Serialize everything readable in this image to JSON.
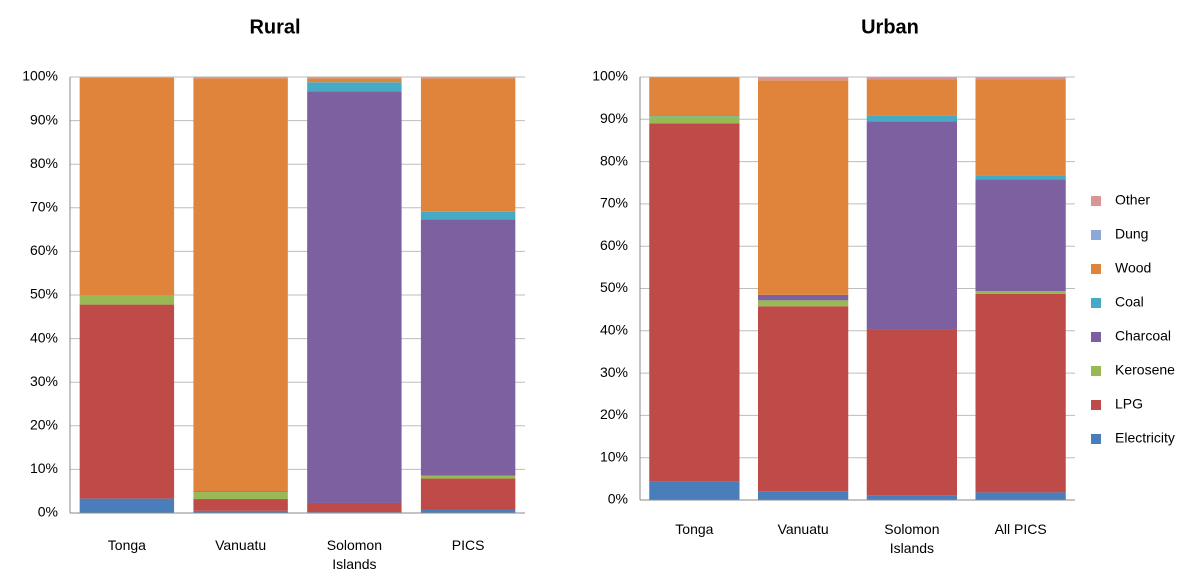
{
  "chart_data": [
    {
      "type": "stacked_bar",
      "title": "Rural",
      "categories": [
        "Tonga",
        "Vanuatu",
        "Solomon Islands",
        "PICS"
      ],
      "ylim": [
        0,
        100
      ],
      "yticks": [
        {
          "value": 0,
          "label": "0%"
        },
        {
          "value": 10,
          "label": "10%"
        },
        {
          "value": 20,
          "label": "20%"
        },
        {
          "value": 30,
          "label": "30%"
        },
        {
          "value": 40,
          "label": "40%"
        },
        {
          "value": 50,
          "label": "50%"
        },
        {
          "value": 60,
          "label": "60%"
        },
        {
          "value": 70,
          "label": "70%"
        },
        {
          "value": 80,
          "label": "80%"
        },
        {
          "value": 90,
          "label": "90%"
        },
        {
          "value": 100,
          "label": "100%"
        }
      ],
      "grid": true,
      "series": [
        {
          "name": "Electricity",
          "color": "#4a7ebb",
          "values": [
            3.3,
            0.5,
            0.2,
            0.8
          ]
        },
        {
          "name": "LPG",
          "color": "#be4b48",
          "values": [
            44.5,
            2.7,
            2.1,
            7.1
          ]
        },
        {
          "name": "Kerosene",
          "color": "#98b954",
          "values": [
            2,
            1.6,
            0,
            0.7
          ]
        },
        {
          "name": "Charcoal",
          "color": "#7d60a0",
          "values": [
            0,
            0.2,
            94.4,
            58.7
          ]
        },
        {
          "name": "Coal",
          "color": "#46aac5",
          "values": [
            0,
            0,
            2.1,
            1.8
          ]
        },
        {
          "name": "Wood",
          "color": "#e0843c",
          "values": [
            50,
            94.7,
            0.9,
            30.6
          ]
        },
        {
          "name": "Dung",
          "color": "#8ea8d8",
          "values": [
            0,
            0,
            0,
            0
          ]
        },
        {
          "name": "Other",
          "color": "#d99694",
          "values": [
            0.2,
            0.3,
            0.3,
            0.3
          ]
        }
      ]
    },
    {
      "type": "stacked_bar",
      "title": "Urban",
      "categories": [
        "Tonga",
        "Vanuatu",
        "Solomon Islands",
        "All PICS"
      ],
      "ylim": [
        0,
        100
      ],
      "yticks": [
        {
          "value": 0,
          "label": "0%"
        },
        {
          "value": 10,
          "label": "10%"
        },
        {
          "value": 20,
          "label": "20%"
        },
        {
          "value": 30,
          "label": "30%"
        },
        {
          "value": 40,
          "label": "40%"
        },
        {
          "value": 50,
          "label": "50%"
        },
        {
          "value": 60,
          "label": "60%"
        },
        {
          "value": 70,
          "label": "70%"
        },
        {
          "value": 80,
          "label": "80%"
        },
        {
          "value": 90,
          "label": "90%"
        },
        {
          "value": 100,
          "label": "100%"
        }
      ],
      "grid": true,
      "legend": "right",
      "series": [
        {
          "name": "Electricity",
          "color": "#4a7ebb",
          "values": [
            4.4,
            2.1,
            1,
            1.8
          ]
        },
        {
          "name": "LPG",
          "color": "#be4b48",
          "values": [
            84.6,
            43.7,
            39.2,
            46.9
          ]
        },
        {
          "name": "Kerosene",
          "color": "#98b954",
          "values": [
            1.7,
            1.4,
            0,
            0.7
          ]
        },
        {
          "name": "Charcoal",
          "color": "#7d60a0",
          "values": [
            0,
            1.3,
            49.3,
            26.4
          ]
        },
        {
          "name": "Coal",
          "color": "#46aac5",
          "values": [
            0.2,
            0,
            1.3,
            1
          ]
        },
        {
          "name": "Wood",
          "color": "#e0843c",
          "values": [
            9,
            50.7,
            8.7,
            22.7
          ]
        },
        {
          "name": "Dung",
          "color": "#8ea8d8",
          "values": [
            0,
            0,
            0,
            0
          ]
        },
        {
          "name": "Other",
          "color": "#d99694",
          "values": [
            0.1,
            0.8,
            0.5,
            0.5
          ]
        }
      ]
    }
  ]
}
